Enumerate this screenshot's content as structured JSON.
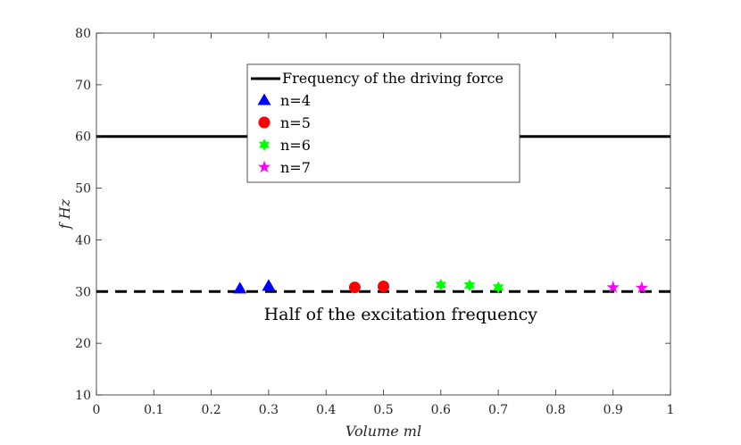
{
  "chart_data": {
    "type": "scatter",
    "title": "",
    "xlabel": "Volume ml",
    "ylabel": "f Hz",
    "xlim": [
      0,
      1
    ],
    "ylim": [
      10,
      80
    ],
    "grid": false,
    "x_ticks": [
      0,
      0.1,
      0.2,
      0.3,
      0.4,
      0.5,
      0.6,
      0.7,
      0.8,
      0.9,
      1
    ],
    "x_tick_labels": [
      "0",
      "0.1",
      "0.2",
      "0.3",
      "0.4",
      "0.5",
      "0.6",
      "0.7",
      "0.8",
      "0.9",
      "1"
    ],
    "y_ticks": [
      10,
      20,
      30,
      40,
      50,
      60,
      70,
      80
    ],
    "y_tick_labels": [
      "10",
      "20",
      "30",
      "40",
      "50",
      "60",
      "70",
      "80"
    ],
    "reference_lines": [
      {
        "name": "Frequency of the driving force",
        "y": 60,
        "style": "solid",
        "color": "#000000"
      },
      {
        "name": "Half of the excitation frequency",
        "y": 30,
        "style": "dashed",
        "color": "#000000"
      }
    ],
    "series": [
      {
        "name": "n=4",
        "marker": "triangle",
        "color": "#0000ff",
        "x": [
          0.25,
          0.3
        ],
        "y": [
          30.6,
          31.1
        ]
      },
      {
        "name": "n=5",
        "marker": "circle",
        "color": "#ff0000",
        "x": [
          0.45,
          0.5
        ],
        "y": [
          30.8,
          31.0
        ]
      },
      {
        "name": "n=6",
        "marker": "hexagram",
        "color": "#00ff00",
        "x": [
          0.6,
          0.65,
          0.7
        ],
        "y": [
          31.3,
          31.2,
          30.8
        ]
      },
      {
        "name": "n=7",
        "marker": "pentagram",
        "color": "#ff00ff",
        "x": [
          0.9,
          0.95
        ],
        "y": [
          30.8,
          30.7
        ]
      }
    ],
    "legend": {
      "placement": "upper-center",
      "entries": [
        "Frequency of the driving force",
        "n=4",
        "n=5",
        "n=6",
        "n=7"
      ]
    },
    "annotations": [
      {
        "text": "Half of the excitation frequency",
        "x": 0.53,
        "y": 24.5
      }
    ]
  }
}
